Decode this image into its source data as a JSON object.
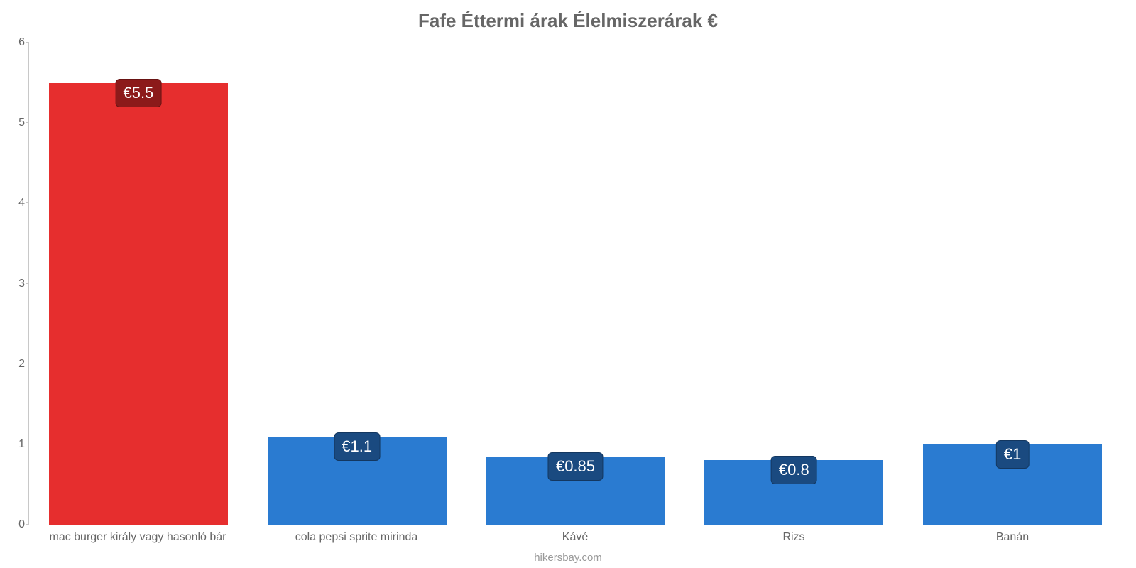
{
  "chart": {
    "type": "bar",
    "title": "Fafe Éttermi árak Élelmiszerárak €",
    "title_color": "#666666",
    "title_fontsize": 26,
    "credit": "hikersbay.com",
    "credit_color": "#999999",
    "background_color": "#ffffff",
    "axis_color": "#c8c8c8",
    "tick_label_color": "#666666",
    "tick_label_fontsize": 16,
    "ylim": [
      0,
      6
    ],
    "ytick_step": 1,
    "yticks": [
      0,
      1,
      2,
      3,
      4,
      5,
      6
    ],
    "bar_width": 0.82,
    "value_label_fontsize": 22,
    "value_label_text_color": "#ffffff",
    "categories": [
      "mac burger király vagy hasonló bár",
      "cola pepsi sprite mirinda",
      "Kávé",
      "Rizs",
      "Banán"
    ],
    "values": [
      5.5,
      1.1,
      0.85,
      0.8,
      1
    ],
    "value_labels": [
      "€5.5",
      "€1.1",
      "€0.85",
      "€0.8",
      "€1"
    ],
    "bar_colors": [
      "#e62e2e",
      "#2a7bd1",
      "#2a7bd1",
      "#2a7bd1",
      "#2a7bd1"
    ],
    "label_bg_colors": [
      "#8c1a1a",
      "#1a4a80",
      "#1a4a80",
      "#1a4a80",
      "#1a4a80"
    ]
  }
}
